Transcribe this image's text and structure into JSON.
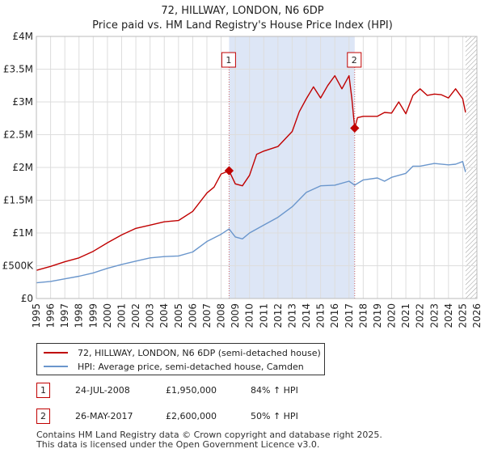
{
  "title_line1": "72, HILLWAY, LONDON, N6 6DP",
  "title_line2": "Price paid vs. HM Land Registry's House Price Index (HPI)",
  "colors": {
    "property": "#c00000",
    "hpi": "#6a96cc",
    "shade": "#dde6f6",
    "grid": "#dddddd"
  },
  "chart_data": {
    "type": "line",
    "title": "72, HILLWAY, LONDON, N6 6DP — Price paid vs. HM Land Registry's House Price Index (HPI)",
    "xlabel": "",
    "ylabel": "",
    "xlim": [
      1995,
      2026
    ],
    "ylim": [
      0,
      4000000
    ],
    "y_ticks": [
      {
        "value": 0,
        "label": "£0"
      },
      {
        "value": 500000,
        "label": "£500K"
      },
      {
        "value": 1000000,
        "label": "£1M"
      },
      {
        "value": 1500000,
        "label": "£1.5M"
      },
      {
        "value": 2000000,
        "label": "£2M"
      },
      {
        "value": 2500000,
        "label": "£2.5M"
      },
      {
        "value": 3000000,
        "label": "£3M"
      },
      {
        "value": 3500000,
        "label": "£3.5M"
      },
      {
        "value": 4000000,
        "label": "£4M"
      }
    ],
    "x_ticks": [
      "1995",
      "1996",
      "1997",
      "1998",
      "1999",
      "2000",
      "2001",
      "2002",
      "2003",
      "2004",
      "2005",
      "2006",
      "2007",
      "2008",
      "2009",
      "2010",
      "2011",
      "2012",
      "2013",
      "2014",
      "2015",
      "2016",
      "2017",
      "2018",
      "2019",
      "2020",
      "2021",
      "2022",
      "2023",
      "2024",
      "2025",
      "2026"
    ],
    "shaded_range": [
      2008.56,
      2017.4
    ],
    "future_hatch_from": 2025.2,
    "series": [
      {
        "name": "72, HILLWAY, LONDON, N6 6DP (semi-detached house)",
        "color": "#c00000",
        "x": [
          1995.0,
          1996.0,
          1997.0,
          1998.0,
          1999.0,
          2000.0,
          2001.0,
          2002.0,
          2003.0,
          2004.0,
          2005.0,
          2006.0,
          2007.0,
          2007.5,
          2008.0,
          2008.56,
          2009.0,
          2009.5,
          2010.0,
          2010.5,
          2011.0,
          2012.0,
          2013.0,
          2013.5,
          2014.0,
          2014.5,
          2015.0,
          2015.5,
          2016.0,
          2016.5,
          2017.0,
          2017.2,
          2017.4,
          2017.6,
          2018.0,
          2019.0,
          2019.5,
          2020.0,
          2020.5,
          2021.0,
          2021.5,
          2022.0,
          2022.5,
          2023.0,
          2023.5,
          2024.0,
          2024.5,
          2025.0,
          2025.2
        ],
        "values": [
          430000,
          490000,
          560000,
          620000,
          720000,
          850000,
          970000,
          1070000,
          1120000,
          1170000,
          1190000,
          1330000,
          1610000,
          1700000,
          1900000,
          1950000,
          1750000,
          1720000,
          1880000,
          2200000,
          2250000,
          2320000,
          2550000,
          2850000,
          3050000,
          3230000,
          3060000,
          3250000,
          3400000,
          3200000,
          3400000,
          3050000,
          2600000,
          2760000,
          2780000,
          2780000,
          2840000,
          2830000,
          3000000,
          2820000,
          3100000,
          3200000,
          3100000,
          3120000,
          3110000,
          3060000,
          3200000,
          3050000,
          2840000
        ]
      },
      {
        "name": "HPI: Average price, semi-detached house, Camden",
        "color": "#6a96cc",
        "x": [
          1995.0,
          1996.0,
          1997.0,
          1998.0,
          1999.0,
          2000.0,
          2001.0,
          2002.0,
          2003.0,
          2004.0,
          2005.0,
          2006.0,
          2007.0,
          2008.0,
          2008.56,
          2009.0,
          2009.5,
          2010.0,
          2011.0,
          2012.0,
          2013.0,
          2014.0,
          2015.0,
          2016.0,
          2017.0,
          2017.4,
          2018.0,
          2019.0,
          2019.5,
          2020.0,
          2021.0,
          2021.5,
          2022.0,
          2023.0,
          2024.0,
          2024.5,
          2025.0,
          2025.2
        ],
        "values": [
          240000,
          260000,
          300000,
          340000,
          390000,
          460000,
          520000,
          570000,
          620000,
          640000,
          650000,
          710000,
          870000,
          980000,
          1060000,
          940000,
          910000,
          1000000,
          1120000,
          1240000,
          1400000,
          1620000,
          1720000,
          1730000,
          1790000,
          1730000,
          1810000,
          1840000,
          1790000,
          1850000,
          1910000,
          2020000,
          2020000,
          2060000,
          2040000,
          2050000,
          2090000,
          1930000
        ]
      }
    ],
    "markers": [
      {
        "label": "1",
        "x": 2008.56,
        "y": 1950000
      },
      {
        "label": "2",
        "x": 2017.4,
        "y": 2600000
      }
    ]
  },
  "legend": {
    "property_label": "72, HILLWAY, LONDON, N6 6DP (semi-detached house)",
    "hpi_label": "HPI: Average price, semi-detached house, Camden"
  },
  "transactions": [
    {
      "num": "1",
      "date": "24-JUL-2008",
      "price": "£1,950,000",
      "hpi": "84% ↑ HPI"
    },
    {
      "num": "2",
      "date": "26-MAY-2017",
      "price": "£2,600,000",
      "hpi": "50% ↑ HPI"
    }
  ],
  "footer": {
    "line1": "Contains HM Land Registry data © Crown copyright and database right 2025.",
    "line2": "This data is licensed under the Open Government Licence v3.0."
  }
}
